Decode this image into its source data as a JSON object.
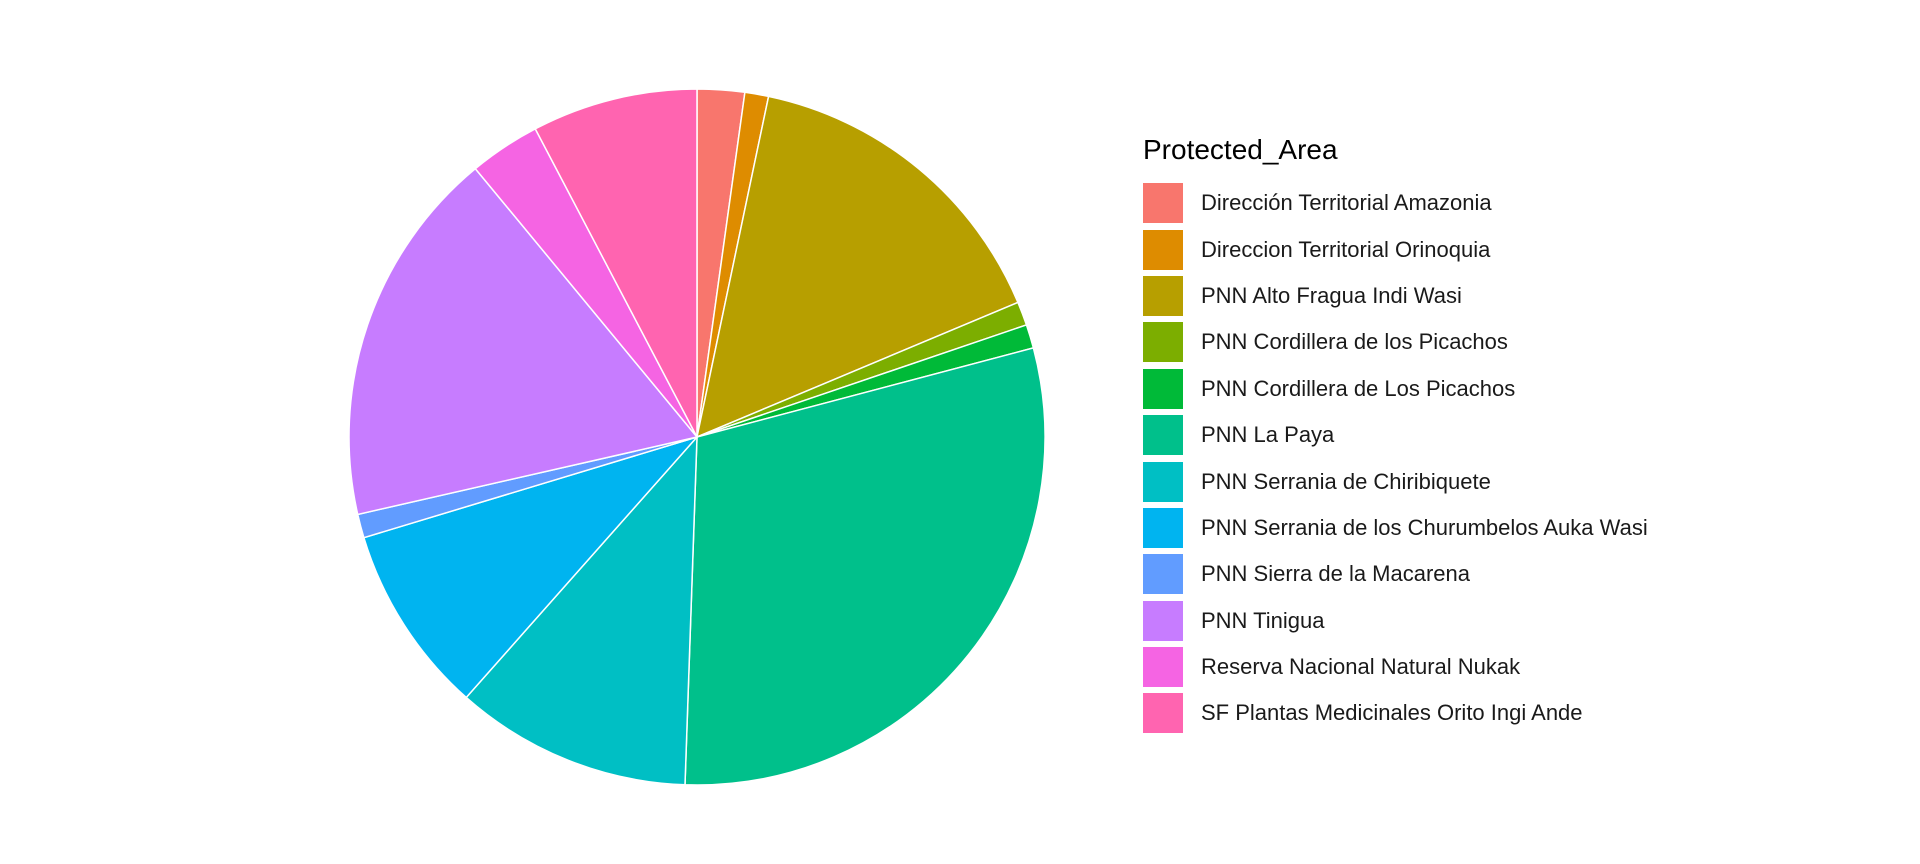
{
  "chart_data": {
    "type": "pie",
    "legend_title": "Protected_Area",
    "legend_position": "right",
    "slice_order": "clockwise-from-top",
    "slice_border_color": "#ffffff",
    "categories": [
      "Dirección Territorial Amazonia",
      "Direccion Territorial Orinoquia",
      "PNN Alto Fragua Indi Wasi",
      "PNN Cordillera de los Picachos",
      "PNN Cordillera de Los Picachos",
      "PNN La Paya",
      "PNN Serrania de Chiribiquete",
      "PNN Serrania de los Churumbelos Auka Wasi",
      "PNN Sierra de la Macarena",
      "PNN Tinigua",
      "Reserva Nacional Natural Nukak",
      "SF Plantas Medicinales Orito Ingi Ande"
    ],
    "values": [
      2.2,
      1.1,
      15.4,
      1.1,
      1.1,
      29.7,
      11.0,
      8.8,
      1.1,
      17.6,
      3.3,
      7.7
    ],
    "colors": [
      "#F8766D",
      "#DE8C00",
      "#B79F00",
      "#7CAE00",
      "#00BA38",
      "#00C08B",
      "#00BFC4",
      "#00B4F0",
      "#619CFF",
      "#C77CFF",
      "#F564E3",
      "#FF64B0"
    ]
  }
}
